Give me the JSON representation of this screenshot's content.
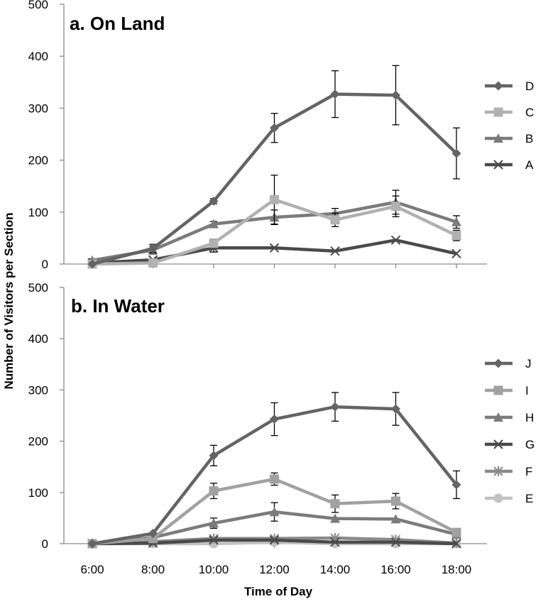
{
  "figure": {
    "y_axis_label": "Number of Visitors per Section",
    "x_axis_label": "Time of Day"
  },
  "chart_data": [
    {
      "type": "line",
      "title": "a. On Land",
      "xlabel": "Time of Day",
      "ylabel": "Number of Visitors per Section",
      "categories": [
        "6:00",
        "8:00",
        "10:00",
        "12:00",
        "14:00",
        "16:00",
        "18:00"
      ],
      "ylim": [
        0,
        500
      ],
      "yticks": [
        0,
        100,
        200,
        300,
        400,
        500
      ],
      "grid": false,
      "legend_position": "right",
      "series": [
        {
          "name": "D",
          "marker": "diamond",
          "color": "#646464",
          "values": [
            0,
            30,
            121,
            262,
            327,
            325,
            213
          ],
          "errors": [
            0,
            8,
            5,
            28,
            45,
            57,
            49
          ]
        },
        {
          "name": "C",
          "marker": "square",
          "color": "#b1b1b1",
          "values": [
            0,
            2,
            40,
            124,
            85,
            111,
            55
          ],
          "errors": [
            0,
            3,
            8,
            47,
            13,
            20,
            10
          ]
        },
        {
          "name": "B",
          "marker": "triangle",
          "color": "#7b7b7b",
          "values": [
            7,
            27,
            77,
            90,
            97,
            119,
            81
          ],
          "errors": [
            3,
            8,
            5,
            14,
            10,
            23,
            12
          ]
        },
        {
          "name": "A",
          "marker": "x",
          "color": "#4a4a4a",
          "values": [
            2,
            8,
            31,
            31,
            25,
            46,
            20
          ],
          "errors": [
            0,
            0,
            8,
            0,
            0,
            0,
            0
          ]
        }
      ]
    },
    {
      "type": "line",
      "title": "b. In Water",
      "xlabel": "Time of Day",
      "ylabel": "Number of Visitors per Section",
      "categories": [
        "6:00",
        "8:00",
        "10:00",
        "12:00",
        "14:00",
        "16:00",
        "18:00"
      ],
      "ylim": [
        0,
        500
      ],
      "yticks": [
        0,
        100,
        200,
        300,
        400,
        500
      ],
      "grid": false,
      "legend_position": "right",
      "series": [
        {
          "name": "J",
          "marker": "diamond",
          "color": "#646464",
          "values": [
            0,
            20,
            172,
            243,
            267,
            263,
            115
          ],
          "errors": [
            0,
            0,
            20,
            32,
            28,
            32,
            27
          ]
        },
        {
          "name": "I",
          "marker": "square",
          "color": "#a1a1a1",
          "values": [
            0,
            10,
            103,
            126,
            78,
            83,
            22
          ],
          "errors": [
            0,
            0,
            15,
            12,
            17,
            15,
            0
          ]
        },
        {
          "name": "H",
          "marker": "triangle",
          "color": "#7b7b7b",
          "values": [
            0,
            12,
            40,
            62,
            49,
            48,
            18
          ],
          "errors": [
            0,
            0,
            10,
            18,
            0,
            0,
            0
          ]
        },
        {
          "name": "G",
          "marker": "x",
          "color": "#4a4a4a",
          "values": [
            0,
            1,
            7,
            7,
            3,
            3,
            0
          ],
          "errors": [
            0,
            0,
            0,
            0,
            0,
            0,
            0
          ]
        },
        {
          "name": "F",
          "marker": "asterisk",
          "color": "#8a8a8a",
          "values": [
            0,
            4,
            10,
            10,
            11,
            8,
            1
          ],
          "errors": [
            0,
            0,
            0,
            0,
            0,
            0,
            0
          ]
        },
        {
          "name": "E",
          "marker": "circle",
          "color": "#c2c2c2",
          "values": [
            0,
            0,
            0,
            3,
            0,
            0,
            0
          ],
          "errors": [
            0,
            0,
            0,
            0,
            0,
            0,
            0
          ]
        }
      ]
    }
  ]
}
